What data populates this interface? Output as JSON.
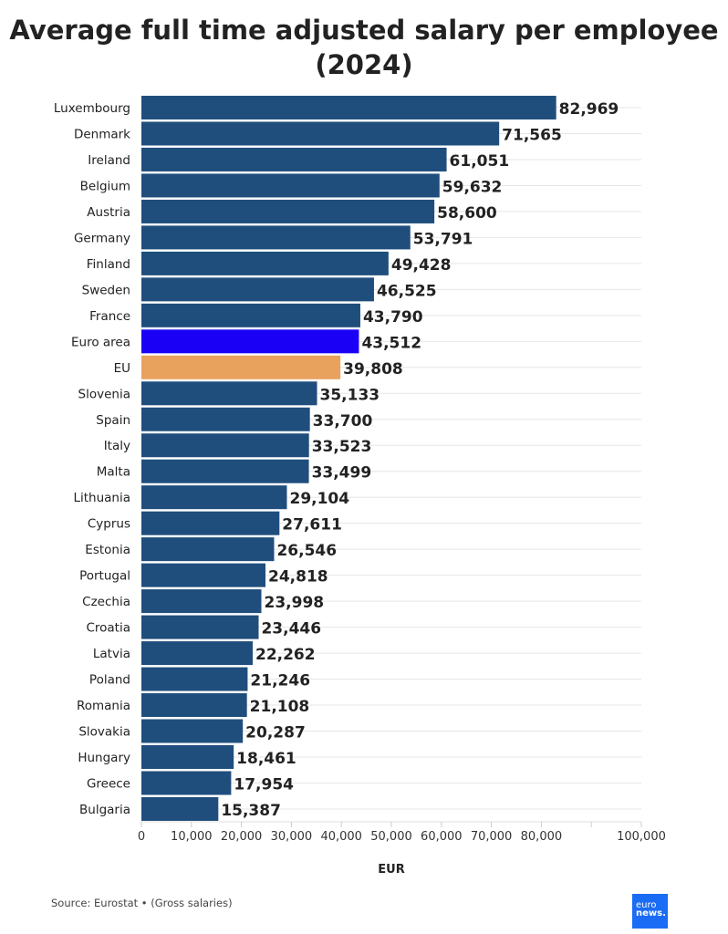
{
  "chart_data": {
    "type": "bar",
    "orientation": "horizontal",
    "title": "Average full time adjusted salary per employee (2024)",
    "xlabel": "EUR",
    "ylabel": "",
    "xlim": [
      0,
      100000
    ],
    "x_ticks": [
      0,
      10000,
      20000,
      30000,
      40000,
      50000,
      60000,
      70000,
      80000,
      90000,
      100000
    ],
    "x_tick_labels": [
      "0",
      "10,000",
      "20,000",
      "30,000",
      "40,000",
      "50,000",
      "60,000",
      "70,000",
      "80,000",
      "",
      "100,000"
    ],
    "grid": true,
    "categories": [
      "Luxembourg",
      "Denmark",
      "Ireland",
      "Belgium",
      "Austria",
      "Germany",
      "Finland",
      "Sweden",
      "France",
      "Euro area",
      "EU",
      "Slovenia",
      "Spain",
      "Italy",
      "Malta",
      "Lithuania",
      "Cyprus",
      "Estonia",
      "Portugal",
      "Czechia",
      "Croatia",
      "Latvia",
      "Poland",
      "Romania",
      "Slovakia",
      "Hungary",
      "Greece",
      "Bulgaria"
    ],
    "values": [
      82969,
      71565,
      61051,
      59632,
      58600,
      53791,
      49428,
      46525,
      43790,
      43512,
      39808,
      35133,
      33700,
      33523,
      33499,
      29104,
      27611,
      26546,
      24818,
      23998,
      23446,
      22262,
      21246,
      21108,
      20287,
      18461,
      17954,
      15387
    ],
    "value_labels": [
      "82,969",
      "71,565",
      "61,051",
      "59,632",
      "58,600",
      "53,791",
      "49,428",
      "46,525",
      "43,790",
      "43,512",
      "39,808",
      "35,133",
      "33,700",
      "33,523",
      "33,499",
      "29,104",
      "27,611",
      "26,546",
      "24,818",
      "23,998",
      "23,446",
      "22,262",
      "21,246",
      "21,108",
      "20,287",
      "18,461",
      "17,954",
      "15,387"
    ],
    "colors": {
      "default": "#1f4e7d",
      "Euro area": "#1a00f5",
      "EU": "#e9a15e"
    }
  },
  "footer": {
    "source": "Source: Eurostat • (Gross salaries)",
    "logo_line1": "euro",
    "logo_line2": "news."
  }
}
